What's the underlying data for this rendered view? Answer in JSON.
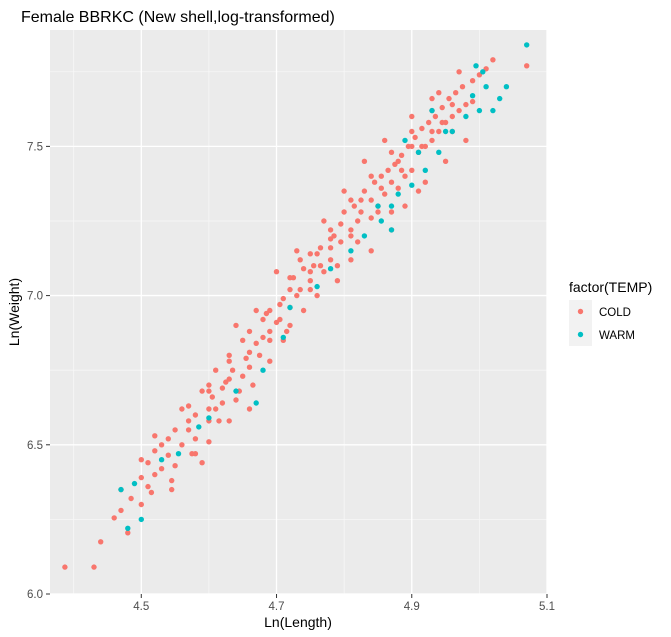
{
  "chart_data": {
    "type": "scatter",
    "title": "Female BBRKC (New shell,log-transformed)",
    "xlabel": "Ln(Length)",
    "ylabel": "Ln(Weight)",
    "xlim": [
      4.365,
      5.1
    ],
    "ylim": [
      6.0,
      7.89
    ],
    "x_ticks": [
      "4.5",
      "4.7",
      "4.9",
      "5.1"
    ],
    "y_ticks": [
      "6.0",
      "6.5",
      "7.0",
      "7.5"
    ],
    "grid": true,
    "legend_title": "factor(TEMP)",
    "legend_position": "right",
    "series": [
      {
        "name": "COLD",
        "color": "#F8766D",
        "points": [
          [
            4.387,
            6.09
          ],
          [
            4.43,
            6.09
          ],
          [
            4.44,
            6.175
          ],
          [
            4.46,
            6.255
          ],
          [
            4.48,
            6.205
          ],
          [
            4.47,
            6.28
          ],
          [
            4.5,
            6.3
          ],
          [
            4.51,
            6.36
          ],
          [
            4.47,
            6.35
          ],
          [
            4.485,
            6.32
          ],
          [
            4.515,
            6.34
          ],
          [
            4.52,
            6.4
          ],
          [
            4.5,
            6.39
          ],
          [
            4.545,
            6.35
          ],
          [
            4.53,
            6.42
          ],
          [
            4.55,
            6.43
          ],
          [
            4.54,
            6.465
          ],
          [
            4.56,
            6.5
          ],
          [
            4.52,
            6.53
          ],
          [
            4.575,
            6.47
          ],
          [
            4.59,
            6.44
          ],
          [
            4.57,
            6.55
          ],
          [
            4.58,
            6.6
          ],
          [
            4.6,
            6.51
          ],
          [
            4.6,
            6.58
          ],
          [
            4.61,
            6.62
          ],
          [
            4.605,
            6.66
          ],
          [
            4.62,
            6.69
          ],
          [
            4.63,
            6.58
          ],
          [
            4.625,
            6.71
          ],
          [
            4.635,
            6.75
          ],
          [
            4.64,
            6.65
          ],
          [
            4.65,
            6.73
          ],
          [
            4.655,
            6.79
          ],
          [
            4.66,
            6.81
          ],
          [
            4.67,
            6.84
          ],
          [
            4.665,
            6.7
          ],
          [
            4.68,
            6.86
          ],
          [
            4.69,
            6.88
          ],
          [
            4.685,
            6.94
          ],
          [
            4.7,
            6.91
          ],
          [
            4.705,
            6.97
          ],
          [
            4.71,
            6.99
          ],
          [
            4.72,
            7.02
          ],
          [
            4.715,
            6.88
          ],
          [
            4.725,
            7.06
          ],
          [
            4.73,
            7.0
          ],
          [
            4.74,
            7.09
          ],
          [
            4.735,
            7.12
          ],
          [
            4.75,
            7.05
          ],
          [
            4.755,
            7.1
          ],
          [
            4.76,
            7.14
          ],
          [
            4.765,
            7.16
          ],
          [
            4.77,
            7.08
          ],
          [
            4.78,
            7.19
          ],
          [
            4.785,
            7.2
          ],
          [
            4.79,
            7.1
          ],
          [
            4.795,
            7.24
          ],
          [
            4.8,
            7.28
          ],
          [
            4.81,
            7.22
          ],
          [
            4.815,
            7.3
          ],
          [
            4.82,
            7.18
          ],
          [
            4.825,
            7.32
          ],
          [
            4.83,
            7.35
          ],
          [
            4.84,
            7.26
          ],
          [
            4.845,
            7.38
          ],
          [
            4.85,
            7.3
          ],
          [
            4.855,
            7.4
          ],
          [
            4.86,
            7.34
          ],
          [
            4.865,
            7.42
          ],
          [
            4.87,
            7.28
          ],
          [
            4.875,
            7.44
          ],
          [
            4.88,
            7.36
          ],
          [
            4.885,
            7.47
          ],
          [
            4.89,
            7.4
          ],
          [
            4.895,
            7.5
          ],
          [
            4.9,
            7.42
          ],
          [
            4.905,
            7.53
          ],
          [
            4.91,
            7.48
          ],
          [
            4.915,
            7.56
          ],
          [
            4.92,
            7.5
          ],
          [
            4.925,
            7.58
          ],
          [
            4.93,
            7.52
          ],
          [
            4.935,
            7.6
          ],
          [
            4.94,
            7.55
          ],
          [
            4.945,
            7.63
          ],
          [
            4.95,
            7.58
          ],
          [
            4.955,
            7.66
          ],
          [
            4.96,
            7.6
          ],
          [
            4.965,
            7.68
          ],
          [
            4.97,
            7.62
          ],
          [
            4.975,
            7.7
          ],
          [
            4.98,
            7.64
          ],
          [
            4.99,
            7.72
          ],
          [
            5.0,
            7.74
          ],
          [
            5.01,
            7.76
          ],
          [
            5.02,
            7.79
          ],
          [
            5.07,
            7.77
          ],
          [
            4.5,
            6.45
          ],
          [
            4.52,
            6.48
          ],
          [
            4.55,
            6.55
          ],
          [
            4.58,
            6.52
          ],
          [
            4.61,
            6.75
          ],
          [
            4.63,
            6.8
          ],
          [
            4.66,
            6.62
          ],
          [
            4.69,
            6.78
          ],
          [
            4.71,
            6.85
          ],
          [
            4.74,
            6.95
          ],
          [
            4.76,
            7.0
          ],
          [
            4.79,
            7.05
          ],
          [
            4.81,
            7.12
          ],
          [
            4.84,
            7.15
          ],
          [
            4.87,
            7.22
          ],
          [
            4.89,
            7.3
          ],
          [
            4.92,
            7.38
          ],
          [
            4.95,
            7.45
          ],
          [
            4.98,
            7.52
          ],
          [
            4.6,
            6.7
          ],
          [
            4.64,
            6.9
          ],
          [
            4.67,
            6.95
          ],
          [
            4.7,
            7.08
          ],
          [
            4.73,
            7.15
          ],
          [
            4.77,
            7.25
          ],
          [
            4.8,
            7.35
          ],
          [
            4.83,
            7.45
          ],
          [
            4.86,
            7.52
          ],
          [
            4.9,
            7.6
          ],
          [
            4.94,
            7.68
          ],
          [
            4.97,
            7.75
          ],
          [
            4.56,
            6.62
          ],
          [
            4.59,
            6.68
          ],
          [
            4.62,
            6.64
          ],
          [
            4.65,
            6.85
          ],
          [
            4.68,
            6.92
          ],
          [
            4.72,
            6.9
          ],
          [
            4.75,
            7.02
          ],
          [
            4.78,
            7.12
          ],
          [
            4.82,
            7.25
          ],
          [
            4.85,
            7.28
          ],
          [
            4.88,
            7.45
          ],
          [
            4.91,
            7.35
          ],
          [
            4.93,
            7.62
          ],
          [
            4.96,
            7.55
          ],
          [
            4.99,
            7.65
          ],
          [
            4.53,
            6.5
          ],
          [
            4.57,
            6.58
          ],
          [
            4.6,
            6.62
          ],
          [
            4.63,
            6.72
          ],
          [
            4.66,
            6.76
          ],
          [
            4.69,
            6.85
          ],
          [
            4.72,
            6.96
          ],
          [
            4.75,
            7.08
          ],
          [
            4.78,
            7.16
          ],
          [
            4.81,
            7.2
          ],
          [
            4.84,
            7.32
          ],
          [
            4.87,
            7.38
          ],
          [
            4.9,
            7.5
          ],
          [
            4.93,
            7.55
          ],
          [
            4.96,
            7.64
          ],
          [
            4.545,
            6.38
          ],
          [
            4.58,
            6.47
          ],
          [
            4.615,
            6.58
          ],
          [
            4.645,
            6.68
          ],
          [
            4.675,
            6.8
          ],
          [
            4.705,
            6.92
          ],
          [
            4.735,
            7.02
          ],
          [
            4.765,
            7.1
          ],
          [
            4.795,
            7.18
          ],
          [
            4.825,
            7.28
          ],
          [
            4.855,
            7.36
          ],
          [
            4.885,
            7.42
          ],
          [
            4.915,
            7.5
          ],
          [
            4.945,
            7.58
          ],
          [
            4.51,
            6.44
          ],
          [
            4.54,
            6.52
          ],
          [
            4.57,
            6.63
          ],
          [
            4.6,
            6.68
          ],
          [
            4.63,
            6.78
          ],
          [
            4.66,
            6.88
          ],
          [
            4.69,
            6.95
          ],
          [
            4.72,
            7.06
          ],
          [
            4.75,
            7.14
          ],
          [
            4.78,
            7.22
          ],
          [
            4.81,
            7.32
          ],
          [
            4.84,
            7.4
          ],
          [
            4.87,
            7.48
          ],
          [
            4.9,
            7.55
          ],
          [
            4.93,
            7.66
          ]
        ]
      },
      {
        "name": "WARM",
        "color": "#00BFC4",
        "points": [
          [
            4.48,
            6.22
          ],
          [
            4.5,
            6.25
          ],
          [
            4.47,
            6.35
          ],
          [
            4.49,
            6.37
          ],
          [
            4.53,
            6.45
          ],
          [
            4.555,
            6.47
          ],
          [
            4.585,
            6.56
          ],
          [
            4.6,
            6.59
          ],
          [
            4.64,
            6.68
          ],
          [
            4.67,
            6.64
          ],
          [
            4.68,
            6.75
          ],
          [
            4.71,
            6.86
          ],
          [
            4.72,
            6.96
          ],
          [
            4.76,
            7.03
          ],
          [
            4.78,
            7.09
          ],
          [
            4.81,
            7.15
          ],
          [
            4.83,
            7.2
          ],
          [
            4.855,
            7.25
          ],
          [
            4.87,
            7.3
          ],
          [
            4.88,
            7.34
          ],
          [
            4.9,
            7.37
          ],
          [
            4.92,
            7.42
          ],
          [
            4.94,
            7.48
          ],
          [
            4.96,
            7.55
          ],
          [
            4.98,
            7.6
          ],
          [
            4.99,
            7.67
          ],
          [
            5.0,
            7.62
          ],
          [
            5.01,
            7.7
          ],
          [
            5.02,
            7.62
          ],
          [
            5.03,
            7.66
          ],
          [
            5.04,
            7.7
          ],
          [
            5.07,
            7.84
          ],
          [
            4.995,
            7.77
          ],
          [
            5.005,
            7.75
          ],
          [
            4.89,
            7.52
          ],
          [
            4.91,
            7.48
          ],
          [
            4.93,
            7.62
          ],
          [
            4.95,
            7.55
          ],
          [
            4.87,
            7.22
          ],
          [
            4.85,
            7.3
          ]
        ]
      }
    ]
  }
}
